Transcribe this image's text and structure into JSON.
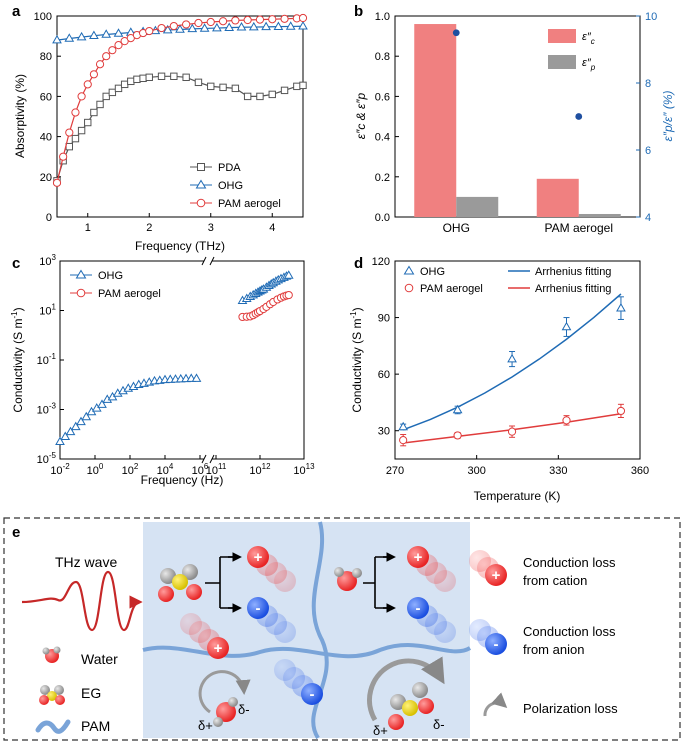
{
  "panels": {
    "a": {
      "label": "a",
      "chart_data": {
        "type": "line",
        "xlabel": "Frequency (THz)",
        "ylabel": "Absorptivity (%)",
        "xlim": [
          0.5,
          4.5
        ],
        "ylim": [
          0,
          100
        ],
        "xticks": [
          "1",
          "2",
          "3",
          "4"
        ],
        "yticks": [
          "0",
          "20",
          "40",
          "60",
          "80",
          "100"
        ],
        "series": [
          {
            "name": "PDA",
            "color": "#555555",
            "marker": "square",
            "x": [
              0.5,
              0.6,
              0.7,
              0.8,
              0.9,
              1.0,
              1.1,
              1.2,
              1.3,
              1.4,
              1.5,
              1.6,
              1.7,
              1.8,
              1.9,
              2.0,
              2.2,
              2.4,
              2.6,
              2.8,
              3.0,
              3.2,
              3.4,
              3.6,
              3.8,
              4.0,
              4.2,
              4.4,
              4.5
            ],
            "y": [
              18,
              28,
              35,
              39,
              43,
              47,
              52,
              56,
              60,
              62,
              64,
              66,
              67.5,
              68.5,
              69,
              69.5,
              70,
              70,
              69.5,
              67,
              65,
              64.5,
              64,
              60,
              60,
              61,
              63,
              65,
              65.5
            ]
          },
          {
            "name": "OHG",
            "color": "#1f6bb5",
            "marker": "triangle",
            "x": [
              0.5,
              0.7,
              0.9,
              1.1,
              1.3,
              1.5,
              1.7,
              1.9,
              2.1,
              2.3,
              2.5,
              2.7,
              2.9,
              3.1,
              3.3,
              3.5,
              3.7,
              3.9,
              4.1,
              4.3,
              4.5
            ],
            "y": [
              88,
              88.8,
              89.5,
              90.2,
              90.8,
              91.3,
              91.8,
              92.2,
              92.6,
              93,
              93.3,
              93.6,
              93.8,
              94,
              94.2,
              94.4,
              94.5,
              94.6,
              94.7,
              94.8,
              94.9
            ]
          },
          {
            "name": "PAM aerogel",
            "color": "#e03c3c",
            "marker": "circle",
            "x": [
              0.5,
              0.6,
              0.7,
              0.8,
              0.9,
              1.0,
              1.1,
              1.2,
              1.3,
              1.4,
              1.5,
              1.6,
              1.7,
              1.8,
              1.9,
              2.0,
              2.2,
              2.4,
              2.6,
              2.8,
              3.0,
              3.2,
              3.4,
              3.6,
              3.8,
              4.0,
              4.2,
              4.4,
              4.5
            ],
            "y": [
              17,
              30,
              42,
              52,
              60,
              66,
              71,
              76,
              80,
              83,
              85.5,
              87.5,
              89,
              90.5,
              91.5,
              92.5,
              94,
              95,
              95.8,
              96.5,
              97,
              97.4,
              97.8,
              98,
              98.2,
              98.4,
              98.6,
              98.8,
              99
            ]
          }
        ],
        "legend": [
          "PDA",
          "OHG",
          "PAM aerogel"
        ]
      }
    },
    "b": {
      "label": "b",
      "chart_data": {
        "type": "bar",
        "categories": [
          "OHG",
          "PAM aerogel"
        ],
        "series": [
          {
            "name": "ε″c",
            "color": "#f08080",
            "values": [
              0.96,
              0.19
            ]
          },
          {
            "name": "ε″p",
            "color": "#9a9a9a",
            "values": [
              0.1,
              0.015
            ]
          }
        ],
        "ratio_series": {
          "name": "ε″p/ε″ (%)",
          "color": "#1f6bb5",
          "values": [
            9.5,
            7.0
          ]
        },
        "ylabel": "ε″c & ε″p",
        "y2label": "ε″p/ε″ (%)",
        "ylim": [
          0,
          1.0
        ],
        "y2lim": [
          4,
          10
        ],
        "yticks": [
          "0.0",
          "0.2",
          "0.4",
          "0.6",
          "0.8",
          "1.0"
        ],
        "y2ticks": [
          "4",
          "6",
          "8",
          "10"
        ],
        "legend_c_main": "ε″",
        "legend_c_sub": "c",
        "legend_p_main": "ε″",
        "legend_p_sub": "p"
      }
    },
    "c": {
      "label": "c",
      "chart_data": {
        "type": "scatter",
        "xlabel": "Frequency (Hz)",
        "ylabel": "Conductivity (S m",
        "ylabel_sup": "-1",
        "ylabel_end": ")",
        "xscale": "log-broken",
        "yscale": "log",
        "x_low_range_exp": [
          -2,
          6
        ],
        "x_high_range_exp": [
          11,
          13
        ],
        "ylim_exp": [
          -5,
          3
        ],
        "xticks_low": [
          "-2",
          "0",
          "2",
          "4",
          "6"
        ],
        "xticks_high": [
          "11",
          "12",
          "13"
        ],
        "yticks": [
          "3",
          "1",
          "-1",
          "-3",
          "-5"
        ],
        "series": [
          {
            "name": "OHG",
            "color": "#1f6bb5",
            "marker": "triangle",
            "low_x_exp": [
              -2,
              -1.7,
              -1.4,
              -1.1,
              -0.8,
              -0.5,
              -0.2,
              0.1,
              0.4,
              0.7,
              1.0,
              1.3,
              1.6,
              1.9,
              2.2,
              2.5,
              2.8,
              3.1,
              3.4,
              3.7,
              4.0,
              4.3,
              4.6,
              4.9,
              5.2,
              5.5,
              5.8
            ],
            "low_y_exp": [
              -4.3,
              -4.1,
              -3.9,
              -3.7,
              -3.5,
              -3.3,
              -3.1,
              -2.95,
              -2.8,
              -2.6,
              -2.5,
              -2.35,
              -2.25,
              -2.15,
              -2.08,
              -2.0,
              -1.95,
              -1.9,
              -1.85,
              -1.83,
              -1.8,
              -1.79,
              -1.78,
              -1.77,
              -1.76,
              -1.75,
              -1.75
            ],
            "high_x": [
              0.4,
              0.5,
              0.6,
              0.7,
              0.8,
              0.9,
              1.0,
              1.1,
              1.2,
              1.4,
              1.6,
              1.8,
              2.0,
              2.3,
              2.6,
              3.0,
              3.5,
              4.0,
              4.5
            ],
            "high_y": [
              25,
              30,
              36,
              42,
              48,
              54,
              60,
              66,
              72,
              85,
              100,
              115,
              130,
              150,
              170,
              190,
              215,
              240,
              260
            ]
          },
          {
            "name": "PAM aerogel",
            "color": "#e03c3c",
            "marker": "circle",
            "high_x": [
              0.4,
              0.5,
              0.6,
              0.7,
              0.8,
              0.9,
              1.0,
              1.2,
              1.4,
              1.7,
              2.0,
              2.5,
              3.0,
              3.5,
              4.0,
              4.5
            ],
            "high_y": [
              5.5,
              5.6,
              5.8,
              6.5,
              7.5,
              8.5,
              9.5,
              11.5,
              14,
              18,
              22,
              28,
              33,
              37,
              40,
              42
            ]
          }
        ],
        "legend": [
          "OHG",
          "PAM aerogel"
        ]
      }
    },
    "d": {
      "label": "d",
      "chart_data": {
        "type": "scatter",
        "xlabel": "Temperature (K)",
        "ylabel": "Conductivity (S m",
        "ylabel_sup": "-1",
        "ylabel_end": ")",
        "xlim": [
          270,
          360
        ],
        "ylim": [
          15,
          120
        ],
        "xticks": [
          "270",
          "300",
          "330",
          "360"
        ],
        "yticks": [
          "30",
          "60",
          "90",
          "120"
        ],
        "series": [
          {
            "name": "OHG",
            "color": "#1f6bb5",
            "marker": "triangle",
            "x": [
              273,
              293,
              313,
              333,
              353
            ],
            "y": [
              32,
              41,
              68,
              85,
              95
            ],
            "err": [
              1.5,
              2,
              4,
              5,
              6
            ]
          },
          {
            "name": "PAM aerogel",
            "color": "#e03c3c",
            "marker": "circle",
            "x": [
              273,
              293,
              313,
              333,
              353
            ],
            "y": [
              25,
              27.5,
              29.5,
              35.5,
              40.5
            ],
            "err": [
              3,
              1.5,
              3,
              2.5,
              3.5
            ]
          }
        ],
        "fits": [
          {
            "name": "Arrhenius fitting",
            "color": "#1f6bb5",
            "x": [
              273,
              283,
              293,
              303,
              313,
              323,
              333,
              343,
              353
            ],
            "y": [
              30.5,
              36,
              42.5,
              50,
              58.5,
              68,
              78.5,
              90,
              102.5
            ]
          },
          {
            "name": "Arrhenius fitting",
            "color": "#e03c3c",
            "x": [
              273,
              293,
              313,
              333,
              353
            ],
            "y": [
              23.5,
              27,
              30.5,
              34.5,
              39
            ]
          }
        ],
        "legend": [
          "OHG",
          "PAM aerogel",
          "Arrhenius fitting",
          "Arrhenius fitting"
        ]
      }
    },
    "e": {
      "label": "e",
      "thz_wave": "THz wave",
      "water": "Water",
      "eg": "EG",
      "pam": "PAM",
      "cond_cation_1": "Conduction loss",
      "cond_cation_2": "from cation",
      "cond_anion_1": "Conduction loss",
      "cond_anion_2": "from anion",
      "polarization": "Polarization loss",
      "plus": "+",
      "minus": "-",
      "delta_plus": "δ+",
      "delta_minus": "δ-"
    }
  }
}
